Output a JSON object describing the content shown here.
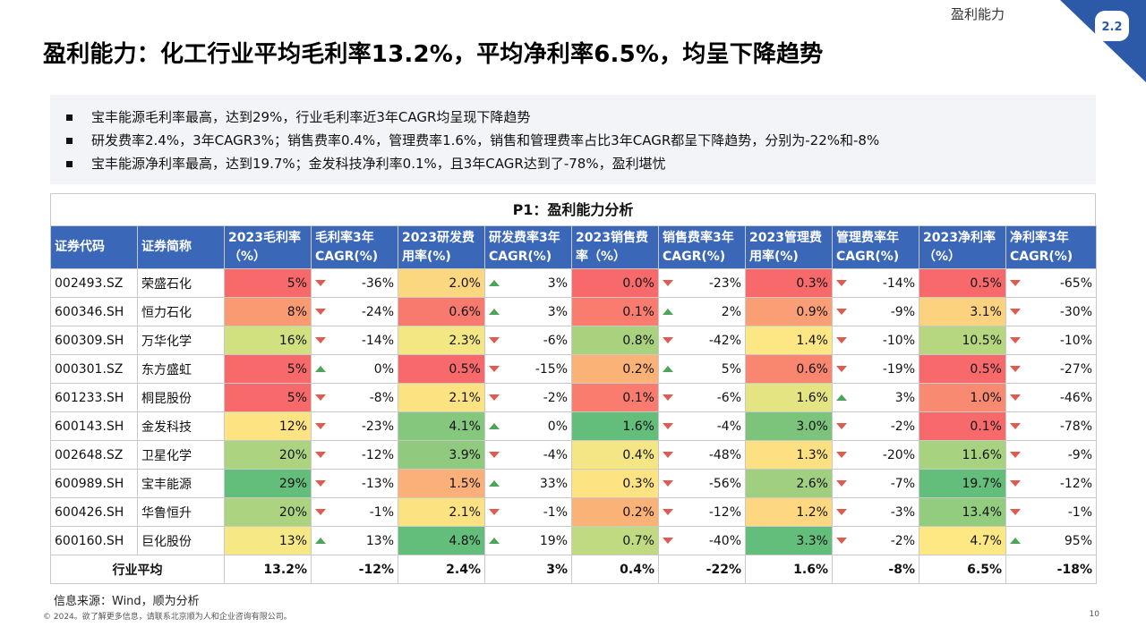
{
  "section_label": "盈利能力",
  "section_number": "2.2",
  "title": "盈利能力：化工行业平均毛利率13.2%，平均净利率6.5%，均呈下降趋势",
  "summary": [
    "宝丰能源毛利率最高，达到29%，行业毛利率近3年CAGR均呈现下降趋势",
    "研发费率2.4%，3年CAGR3%；销售费率0.4%，管理费率1.6%，销售和管理费率占比3年CAGR都呈下降趋势，分别为-22%和-8%",
    "宝丰能源净利率最高，达到19.7%；金发科技净利率0.1%，且3年CAGR达到了-78%，盈利堪忧"
  ],
  "table": {
    "title": "P1：盈利能力分析",
    "headers": [
      "证券代码",
      "证券简称",
      "2023毛利率（%）",
      "毛利率3年CAGR(%)",
      "2023研发费用率(%)",
      "研发费率3年CAGR(%)",
      "2023销售费率（%）",
      "销售费率3年CAGR(%)",
      "2023管理费用率(%)",
      "管理费率年CAGR(%)",
      "2023净利率（%）",
      "净利率3年CAGR(%)"
    ],
    "rows": [
      {
        "code": "002493.SZ",
        "name": "荣盛石化",
        "gm": "5%",
        "gm_cagr": "-36%",
        "gm_dir": "down",
        "rd": "2.0%",
        "rd_cagr": "3%",
        "rd_dir": "up",
        "sales": "0.0%",
        "sales_cagr": "-23%",
        "sales_dir": "down",
        "mgmt": "0.3%",
        "mgmt_cagr": "-14%",
        "mgmt_dir": "down",
        "np": "0.5%",
        "np_cagr": "-65%",
        "np_dir": "down",
        "colors": {
          "gm": "#f8696b",
          "rd": "#fbd87f",
          "sales": "#f8696b",
          "mgmt": "#f8696b",
          "np": "#f8696b"
        }
      },
      {
        "code": "600346.SH",
        "name": "恒力石化",
        "gm": "8%",
        "gm_cagr": "-24%",
        "gm_dir": "down",
        "rd": "0.6%",
        "rd_cagr": "3%",
        "rd_dir": "up",
        "sales": "0.1%",
        "sales_cagr": "2%",
        "sales_dir": "up",
        "mgmt": "0.9%",
        "mgmt_cagr": "-9%",
        "mgmt_dir": "down",
        "np": "3.1%",
        "np_cagr": "-30%",
        "np_dir": "down",
        "colors": {
          "gm": "#f99a73",
          "rd": "#f8796d",
          "sales": "#f97c6e",
          "mgmt": "#fa9f75",
          "np": "#fcd27f"
        }
      },
      {
        "code": "600309.SH",
        "name": "万华化学",
        "gm": "16%",
        "gm_cagr": "-14%",
        "gm_dir": "down",
        "rd": "2.3%",
        "rd_cagr": "-6%",
        "rd_dir": "down",
        "sales": "0.8%",
        "sales_cagr": "-42%",
        "sales_dir": "down",
        "mgmt": "1.4%",
        "mgmt_cagr": "-10%",
        "mgmt_dir": "down",
        "np": "10.5%",
        "np_cagr": "-10%",
        "np_dir": "down",
        "colors": {
          "gm": "#d2e17f",
          "rd": "#f3e783",
          "sales": "#a9d27f",
          "mgmt": "#fce784",
          "np": "#b6d780"
        }
      },
      {
        "code": "000301.SZ",
        "name": "东方盛虹",
        "gm": "5%",
        "gm_cagr": "0%",
        "gm_dir": "up",
        "rd": "0.5%",
        "rd_cagr": "-15%",
        "rd_dir": "down",
        "sales": "0.2%",
        "sales_cagr": "5%",
        "sales_dir": "up",
        "mgmt": "0.6%",
        "mgmt_cagr": "-19%",
        "mgmt_dir": "down",
        "np": "0.5%",
        "np_cagr": "-27%",
        "np_dir": "down",
        "colors": {
          "gm": "#f8696b",
          "rd": "#f8696b",
          "sales": "#fab277",
          "mgmt": "#f98770",
          "np": "#f8696b"
        }
      },
      {
        "code": "601233.SH",
        "name": "桐昆股份",
        "gm": "5%",
        "gm_cagr": "-8%",
        "gm_dir": "down",
        "rd": "2.1%",
        "rd_cagr": "-2%",
        "rd_dir": "down",
        "sales": "0.1%",
        "sales_cagr": "-6%",
        "sales_dir": "down",
        "mgmt": "1.6%",
        "mgmt_cagr": "3%",
        "mgmt_dir": "up",
        "np": "1.0%",
        "np_cagr": "-46%",
        "np_dir": "down",
        "colors": {
          "gm": "#f8696b",
          "rd": "#fde282",
          "sales": "#f97c6e",
          "mgmt": "#e4e483",
          "np": "#f88a71"
        }
      },
      {
        "code": "600143.SH",
        "name": "金发科技",
        "gm": "12%",
        "gm_cagr": "-23%",
        "gm_dir": "down",
        "rd": "4.1%",
        "rd_cagr": "0%",
        "rd_dir": "up",
        "sales": "1.6%",
        "sales_cagr": "-4%",
        "sales_dir": "down",
        "mgmt": "3.0%",
        "mgmt_cagr": "-2%",
        "mgmt_dir": "down",
        "np": "0.1%",
        "np_cagr": "-78%",
        "np_dir": "down",
        "colors": {
          "gm": "#fde382",
          "rd": "#84c77d",
          "sales": "#63be7b",
          "mgmt": "#7cc47c",
          "np": "#f8696b"
        }
      },
      {
        "code": "002648.SZ",
        "name": "卫星化学",
        "gm": "20%",
        "gm_cagr": "-12%",
        "gm_dir": "down",
        "rd": "3.9%",
        "rd_cagr": "-4%",
        "rd_dir": "down",
        "sales": "0.4%",
        "sales_cagr": "-48%",
        "sales_dir": "down",
        "mgmt": "1.3%",
        "mgmt_cagr": "-20%",
        "mgmt_dir": "down",
        "np": "11.6%",
        "np_cagr": "-9%",
        "np_dir": "down",
        "colors": {
          "gm": "#acd480",
          "rd": "#8fca7e",
          "sales": "#f4e684",
          "mgmt": "#fde082",
          "np": "#a7d27f"
        }
      },
      {
        "code": "600989.SH",
        "name": "宝丰能源",
        "gm": "29%",
        "gm_cagr": "-13%",
        "gm_dir": "down",
        "rd": "1.5%",
        "rd_cagr": "33%",
        "rd_dir": "up",
        "sales": "0.3%",
        "sales_cagr": "-56%",
        "sales_dir": "down",
        "mgmt": "2.6%",
        "mgmt_cagr": "-7%",
        "mgmt_dir": "down",
        "np": "19.7%",
        "np_cagr": "-12%",
        "np_dir": "down",
        "colors": {
          "gm": "#63be7b",
          "rd": "#fbb07a",
          "sales": "#fde382",
          "mgmt": "#9fcf7f",
          "np": "#63be7b"
        }
      },
      {
        "code": "600426.SH",
        "name": "华鲁恒升",
        "gm": "20%",
        "gm_cagr": "-1%",
        "gm_dir": "down",
        "rd": "2.1%",
        "rd_cagr": "-1%",
        "rd_dir": "down",
        "sales": "0.2%",
        "sales_cagr": "-12%",
        "sales_dir": "down",
        "mgmt": "1.2%",
        "mgmt_cagr": "-3%",
        "mgmt_dir": "down",
        "np": "13.4%",
        "np_cagr": "-1%",
        "np_dir": "down",
        "colors": {
          "gm": "#acd480",
          "rd": "#fde282",
          "sales": "#fab277",
          "mgmt": "#fdd880",
          "np": "#92cc7e"
        }
      },
      {
        "code": "600160.SH",
        "name": "巨化股份",
        "gm": "13%",
        "gm_cagr": "13%",
        "gm_dir": "up",
        "rd": "4.8%",
        "rd_cagr": "19%",
        "rd_dir": "up",
        "sales": "0.7%",
        "sales_cagr": "-40%",
        "sales_dir": "down",
        "mgmt": "3.3%",
        "mgmt_cagr": "-2%",
        "mgmt_dir": "down",
        "np": "4.7%",
        "np_cagr": "95%",
        "np_dir": "up",
        "colors": {
          "gm": "#f6e884",
          "rd": "#63be7b",
          "sales": "#bfda81",
          "mgmt": "#63be7b",
          "np": "#fde883"
        }
      }
    ],
    "average": {
      "label": "行业平均",
      "gm": "13.2%",
      "gm_cagr": "-12%",
      "rd": "2.4%",
      "rd_cagr": "3%",
      "sales": "0.4%",
      "sales_cagr": "-22%",
      "mgmt": "1.6%",
      "mgmt_cagr": "-8%",
      "np": "6.5%",
      "np_cagr": "-18%"
    }
  },
  "source": "信息来源：Wind，顺为分析",
  "copyright": "© 2024。欲了解更多信息，请联系北京顺为人和企业咨询有限公司。",
  "page_number": "10"
}
